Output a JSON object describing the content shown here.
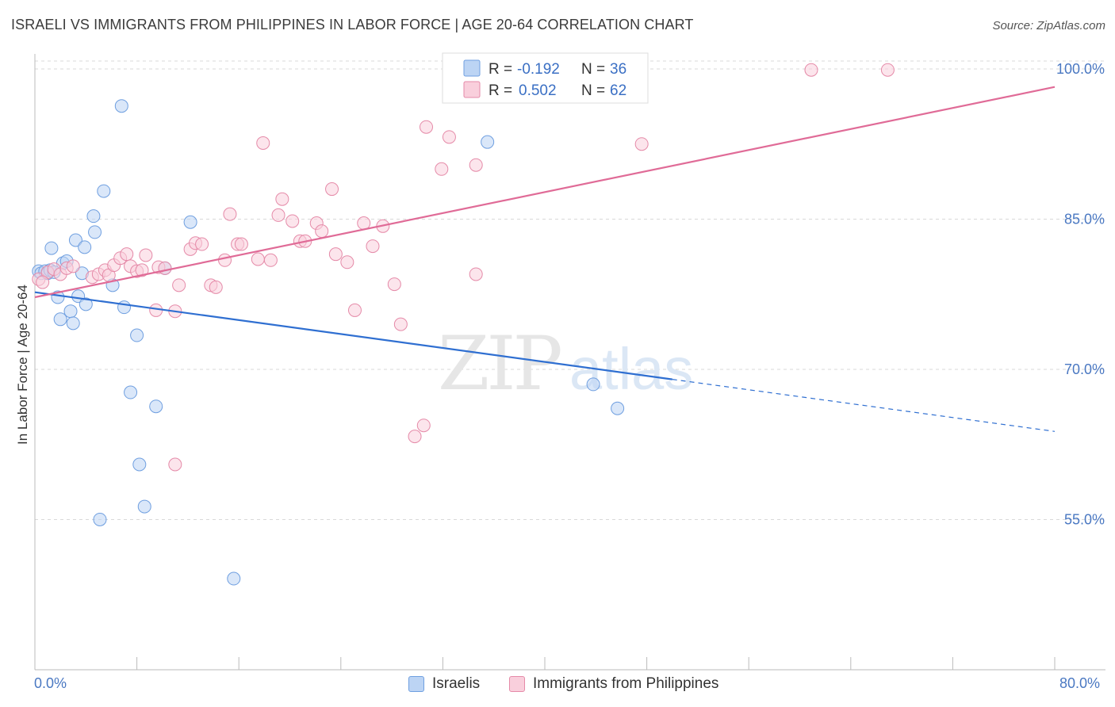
{
  "title": "ISRAELI VS IMMIGRANTS FROM PHILIPPINES IN LABOR FORCE | AGE 20-64 CORRELATION CHART",
  "source": "Source: ZipAtlas.com",
  "watermark": {
    "zip": "ZIP",
    "atlas": "atlas"
  },
  "legend": {
    "rows": [
      {
        "r_label": "R =",
        "r_value": "-0.192",
        "n_label": "N =",
        "n_value": "36",
        "color": "#a9c7ef"
      },
      {
        "r_label": "R =",
        "r_value": "0.502",
        "n_label": "N =",
        "n_value": "62",
        "color": "#f5b8cb"
      }
    ]
  },
  "bottom_legend": [
    {
      "label": "Israelis",
      "fill": "#bcd4f4",
      "stroke": "#6f9fe0"
    },
    {
      "label": "Immigrants from Philippines",
      "fill": "#f9cfdc",
      "stroke": "#e58aa8"
    }
  ],
  "chart_data": {
    "type": "scatter",
    "title": "ISRAELI VS IMMIGRANTS FROM PHILIPPINES IN LABOR FORCE | AGE 20-64 CORRELATION CHART",
    "xlabel": "",
    "ylabel": "In Labor Force | Age 20-64",
    "xlim": [
      0,
      80
    ],
    "ylim": [
      40,
      101.5
    ],
    "x_tick_labels": [
      "0.0%",
      "80.0%"
    ],
    "y_ticks": [
      55,
      70,
      85,
      100
    ],
    "y_tick_labels": [
      "55.0%",
      "70.0%",
      "85.0%",
      "100.0%"
    ],
    "grid": true,
    "series": [
      {
        "name": "Israelis",
        "color": "#6f9fe0",
        "fill": "#bcd4f4",
        "line_color": "#2f6fd1",
        "trend": {
          "x": [
            0,
            50
          ],
          "y": [
            77.7,
            69.0
          ],
          "dashed_to": [
            80,
            63.8
          ]
        },
        "points": [
          {
            "x": 0.3,
            "y": 79.8
          },
          {
            "x": 0.5,
            "y": 79.6
          },
          {
            "x": 0.8,
            "y": 79.8
          },
          {
            "x": 1.0,
            "y": 79.6
          },
          {
            "x": 1.2,
            "y": 79.9
          },
          {
            "x": 1.5,
            "y": 79.7
          },
          {
            "x": 1.3,
            "y": 82.1
          },
          {
            "x": 1.8,
            "y": 77.2
          },
          {
            "x": 2.0,
            "y": 75.0
          },
          {
            "x": 2.2,
            "y": 80.6
          },
          {
            "x": 2.5,
            "y": 80.8
          },
          {
            "x": 2.8,
            "y": 75.8
          },
          {
            "x": 3.0,
            "y": 74.6
          },
          {
            "x": 3.2,
            "y": 82.9
          },
          {
            "x": 3.4,
            "y": 77.3
          },
          {
            "x": 3.7,
            "y": 79.6
          },
          {
            "x": 3.9,
            "y": 82.2
          },
          {
            "x": 4.0,
            "y": 76.5
          },
          {
            "x": 4.6,
            "y": 85.3
          },
          {
            "x": 4.7,
            "y": 83.7
          },
          {
            "x": 5.4,
            "y": 87.8
          },
          {
            "x": 6.1,
            "y": 78.4
          },
          {
            "x": 6.8,
            "y": 96.3
          },
          {
            "x": 7.0,
            "y": 76.2
          },
          {
            "x": 7.5,
            "y": 67.7
          },
          {
            "x": 8.0,
            "y": 73.4
          },
          {
            "x": 8.2,
            "y": 60.5
          },
          {
            "x": 8.6,
            "y": 56.3
          },
          {
            "x": 9.5,
            "y": 66.3
          },
          {
            "x": 10.2,
            "y": 80.1
          },
          {
            "x": 12.2,
            "y": 84.7
          },
          {
            "x": 5.1,
            "y": 55.0
          },
          {
            "x": 15.6,
            "y": 49.1
          },
          {
            "x": 35.5,
            "y": 92.7
          },
          {
            "x": 43.8,
            "y": 68.5
          },
          {
            "x": 45.7,
            "y": 66.1
          }
        ]
      },
      {
        "name": "Immigrants from Philippines",
        "color": "#e58aa8",
        "fill": "#f9cfdc",
        "line_color": "#e06b97",
        "trend": {
          "x": [
            0,
            80
          ],
          "y": [
            77.2,
            98.2
          ]
        },
        "points": [
          {
            "x": 0.3,
            "y": 79.0
          },
          {
            "x": 1.0,
            "y": 79.7
          },
          {
            "x": 1.5,
            "y": 80.0
          },
          {
            "x": 2.0,
            "y": 79.5
          },
          {
            "x": 2.5,
            "y": 80.1
          },
          {
            "x": 3.0,
            "y": 80.3
          },
          {
            "x": 4.5,
            "y": 79.2
          },
          {
            "x": 5.0,
            "y": 79.5
          },
          {
            "x": 5.5,
            "y": 79.9
          },
          {
            "x": 5.8,
            "y": 79.4
          },
          {
            "x": 6.2,
            "y": 80.4
          },
          {
            "x": 6.7,
            "y": 81.1
          },
          {
            "x": 7.2,
            "y": 81.5
          },
          {
            "x": 7.5,
            "y": 80.3
          },
          {
            "x": 8.0,
            "y": 79.8
          },
          {
            "x": 8.7,
            "y": 81.4
          },
          {
            "x": 9.7,
            "y": 80.2
          },
          {
            "x": 10.2,
            "y": 80.1
          },
          {
            "x": 11.3,
            "y": 78.4
          },
          {
            "x": 11.0,
            "y": 75.8
          },
          {
            "x": 12.2,
            "y": 82.0
          },
          {
            "x": 12.6,
            "y": 82.6
          },
          {
            "x": 13.1,
            "y": 82.5
          },
          {
            "x": 13.8,
            "y": 78.4
          },
          {
            "x": 14.2,
            "y": 78.2
          },
          {
            "x": 14.9,
            "y": 80.9
          },
          {
            "x": 15.3,
            "y": 85.5
          },
          {
            "x": 15.9,
            "y": 82.5
          },
          {
            "x": 16.2,
            "y": 82.5
          },
          {
            "x": 17.5,
            "y": 81.0
          },
          {
            "x": 17.9,
            "y": 92.6
          },
          {
            "x": 18.5,
            "y": 80.9
          },
          {
            "x": 19.1,
            "y": 85.4
          },
          {
            "x": 19.4,
            "y": 87.0
          },
          {
            "x": 20.2,
            "y": 84.8
          },
          {
            "x": 20.8,
            "y": 82.8
          },
          {
            "x": 21.2,
            "y": 82.8
          },
          {
            "x": 22.1,
            "y": 84.6
          },
          {
            "x": 22.5,
            "y": 83.8
          },
          {
            "x": 23.3,
            "y": 88.0
          },
          {
            "x": 23.6,
            "y": 81.5
          },
          {
            "x": 24.5,
            "y": 80.7
          },
          {
            "x": 25.1,
            "y": 75.9
          },
          {
            "x": 25.8,
            "y": 84.6
          },
          {
            "x": 26.5,
            "y": 82.3
          },
          {
            "x": 27.3,
            "y": 84.3
          },
          {
            "x": 28.2,
            "y": 78.5
          },
          {
            "x": 28.7,
            "y": 74.5
          },
          {
            "x": 29.8,
            "y": 63.3
          },
          {
            "x": 30.5,
            "y": 64.4
          },
          {
            "x": 30.7,
            "y": 94.2
          },
          {
            "x": 31.9,
            "y": 90.0
          },
          {
            "x": 32.5,
            "y": 93.2
          },
          {
            "x": 34.6,
            "y": 90.4
          },
          {
            "x": 34.6,
            "y": 79.5
          },
          {
            "x": 47.6,
            "y": 92.5
          },
          {
            "x": 60.9,
            "y": 99.9
          },
          {
            "x": 66.9,
            "y": 99.9
          },
          {
            "x": 11.0,
            "y": 60.5
          },
          {
            "x": 9.5,
            "y": 75.9
          },
          {
            "x": 8.4,
            "y": 79.9
          },
          {
            "x": 0.6,
            "y": 78.7
          }
        ]
      }
    ]
  }
}
